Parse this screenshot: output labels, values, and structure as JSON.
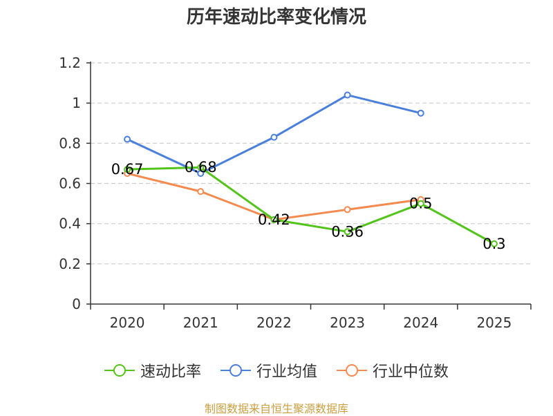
{
  "title": "历年速动比率变化情况",
  "footer": "制图数据来自恒生聚源数据库",
  "chart_data": {
    "type": "line",
    "title": "历年速动比率变化情况",
    "categories": [
      "2020",
      "2021",
      "2022",
      "2023",
      "2024",
      "2025"
    ],
    "ylim": [
      0,
      1.2
    ],
    "yticks": [
      0,
      0.2,
      0.4,
      0.6,
      0.8,
      1,
      1.2
    ],
    "ytick_labels": [
      "0",
      "0.2",
      "0.4",
      "0.6",
      "0.8",
      "1",
      "1.2"
    ],
    "grid": true,
    "legend_position": "bottom",
    "series": [
      {
        "name": "速动比率",
        "color": "#52c41a",
        "values": [
          0.67,
          0.68,
          0.42,
          0.36,
          0.5,
          0.3
        ],
        "labels": [
          "0.67",
          "0.68",
          "0.42",
          "0.36",
          "0.5",
          "0.3"
        ]
      },
      {
        "name": "行业均值",
        "color": "#4a7fdc",
        "values": [
          0.82,
          0.65,
          0.83,
          1.04,
          0.95,
          null
        ]
      },
      {
        "name": "行业中位数",
        "color": "#f58a4f",
        "values": [
          0.65,
          0.56,
          0.42,
          0.47,
          0.52,
          null
        ]
      }
    ]
  }
}
